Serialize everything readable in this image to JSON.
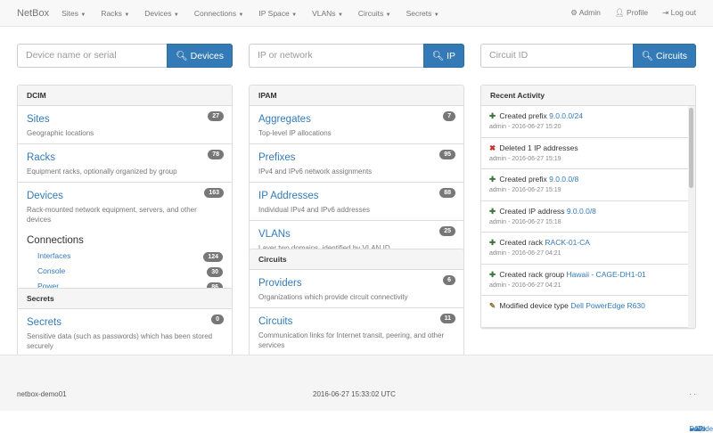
{
  "nav": {
    "brand": "NetBox",
    "menus": [
      "Sites",
      "Racks",
      "Devices",
      "Connections",
      "IP Space",
      "VLANs",
      "Circuits",
      "Secrets"
    ],
    "admin": "Admin",
    "profile": "Profile",
    "logout": "Log out"
  },
  "search": [
    {
      "placeholder": "Device name or serial",
      "button": "Devices"
    },
    {
      "placeholder": "IP or network",
      "button": "IP"
    },
    {
      "placeholder": "Circuit ID",
      "button": "Circuits"
    }
  ],
  "dcim": {
    "title": "DCIM",
    "items": [
      {
        "title": "Sites",
        "desc": "Geographic locations",
        "count": "27"
      },
      {
        "title": "Racks",
        "desc": "Equipment racks, optionally organized by group",
        "count": "78"
      },
      {
        "title": "Devices",
        "desc": "Rack-mounted network equipment, servers, and other devices",
        "count": "163"
      }
    ],
    "connections": {
      "title": "Connections",
      "items": [
        {
          "label": "Interfaces",
          "count": "124"
        },
        {
          "label": "Console",
          "count": "30"
        },
        {
          "label": "Power",
          "count": "86"
        }
      ]
    }
  },
  "secrets": {
    "title": "Secrets",
    "items": [
      {
        "title": "Secrets",
        "desc": "Sensitive data (such as passwords) which has been stored securely",
        "count": "0"
      }
    ]
  },
  "ipam": {
    "title": "IPAM",
    "items": [
      {
        "title": "Aggregates",
        "desc": "Top-level IP allocations",
        "count": "7"
      },
      {
        "title": "Prefixes",
        "desc": "IPv4 and IPv6 network assignments",
        "count": "95"
      },
      {
        "title": "IP Addresses",
        "desc": "Individual IPv4 and IPv6 addresses",
        "count": "88"
      },
      {
        "title": "VLANs",
        "desc": "Layer two domains, identified by VLAN ID",
        "count": "25"
      }
    ]
  },
  "circuits": {
    "title": "Circuits",
    "items": [
      {
        "title": "Providers",
        "desc": "Organizations which provide circuit connectivity",
        "count": "6"
      },
      {
        "title": "Circuits",
        "desc": "Communication links for Internet transit, peering, and other services",
        "count": "11"
      }
    ]
  },
  "activity": {
    "title": "Recent Activity",
    "items": [
      {
        "icon": "plus",
        "text": "Created prefix ",
        "link": "9.0.0.0/24",
        "meta": "admin - 2016-06-27 15:20"
      },
      {
        "icon": "times",
        "text": "Deleted 1 IP addresses",
        "link": "",
        "meta": "admin - 2016-06-27 15:19"
      },
      {
        "icon": "plus",
        "text": "Created prefix ",
        "link": "9.0.0.0/8",
        "meta": "admin - 2016-06-27 15:19"
      },
      {
        "icon": "plus",
        "text": "Created IP address ",
        "link": "9.0.0.0/8",
        "meta": "admin - 2016-06-27 15:18"
      },
      {
        "icon": "plus",
        "text": "Created rack ",
        "link": "RACK-01-CA",
        "meta": "admin - 2016-06-27 04:21"
      },
      {
        "icon": "plus",
        "text": "Created rack group ",
        "link": "Hawaii - CAGE-DH1-01",
        "meta": "admin - 2016-06-27 04:21"
      },
      {
        "icon": "pencil",
        "text": "Modified device type ",
        "link": "Dell PowerEdge R630",
        "meta": ""
      }
    ]
  },
  "footer": {
    "host": "netbox-demo01",
    "time": "2016-06-27 15:33:02 UTC",
    "docs": "Docs",
    "api": "API",
    "code": "Code",
    "sep": "·"
  },
  "colors": {
    "link": "#337ab7",
    "plus": "#3c763d",
    "times": "#c9302c",
    "pencil": "#8a6d3b"
  }
}
